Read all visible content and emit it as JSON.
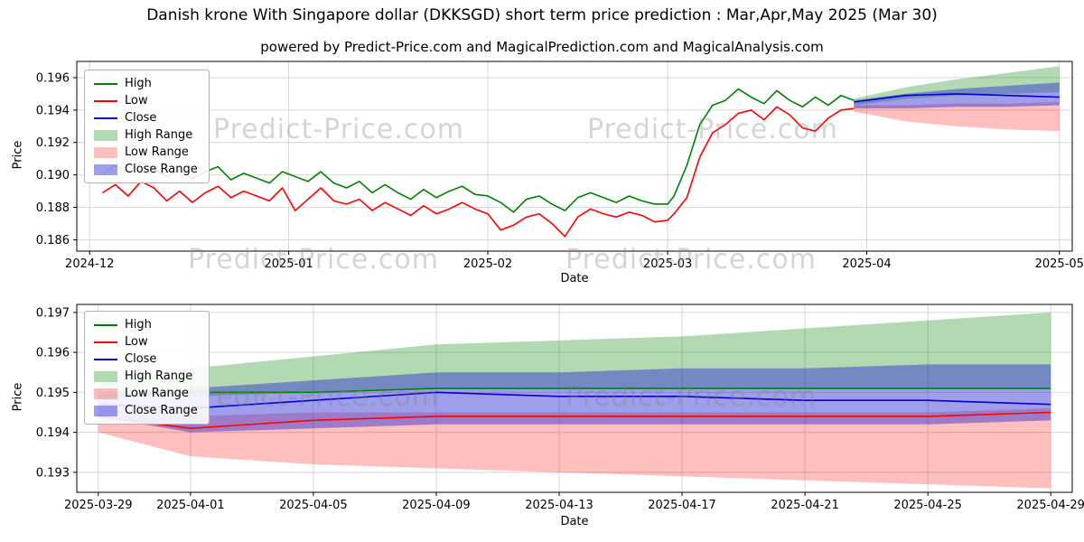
{
  "page": {
    "suptitle": "Danish krone With Singapore dollar (DKKSGD) short term price prediction : Mar,Apr,May 2025 (Mar 30)",
    "watermark": "Predict-Price.com"
  },
  "legend": [
    "High",
    "Low",
    "Close",
    "High Range",
    "Low Range",
    "Close Range"
  ],
  "colors": {
    "high": "#008000",
    "low": "#ff0000",
    "close": "#0000cd",
    "high_range": "rgba(0,128,0,0.30)",
    "low_range": "rgba(255,0,0,0.25)",
    "close_range": "rgba(40,40,210,0.45)"
  },
  "chart_data": [
    {
      "type": "line",
      "title": "powered by Predict-Price.com and MagicalPrediction.com and MagicalAnalysis.com",
      "xlabel": "Date",
      "ylabel": "Price",
      "x_unit": "days since 2024-12-01",
      "xlim": [
        -2,
        153
      ],
      "ylim": [
        0.1853,
        0.197
      ],
      "grid": true,
      "legend_position": "upper-left",
      "x_ticks": [
        {
          "v": 0,
          "label": "2024-12"
        },
        {
          "v": 31,
          "label": "2025-01"
        },
        {
          "v": 62,
          "label": "2025-02"
        },
        {
          "v": 90,
          "label": "2025-03"
        },
        {
          "v": 121,
          "label": "2025-04"
        },
        {
          "v": 151,
          "label": "2025-05"
        }
      ],
      "y_ticks": [
        {
          "v": 0.186,
          "label": "0.186"
        },
        {
          "v": 0.188,
          "label": "0.188"
        },
        {
          "v": 0.19,
          "label": "0.190"
        },
        {
          "v": 0.192,
          "label": "0.192"
        },
        {
          "v": 0.194,
          "label": "0.194"
        },
        {
          "v": 0.196,
          "label": "0.196"
        }
      ],
      "bands": [
        {
          "name": "High Range",
          "color": "#008000",
          "opacity": 0.3,
          "x": [
            119,
            127,
            135,
            143,
            151
          ],
          "upper": [
            0.1947,
            0.1954,
            0.1959,
            0.1963,
            0.1967
          ],
          "lower": [
            0.1943,
            0.1947,
            0.1949,
            0.195,
            0.1951
          ]
        },
        {
          "name": "Low Range",
          "color": "#ff0000",
          "opacity": 0.25,
          "x": [
            119,
            127,
            135,
            143,
            151
          ],
          "upper": [
            0.1943,
            0.1943,
            0.1944,
            0.1944,
            0.1945
          ],
          "lower": [
            0.1939,
            0.1933,
            0.193,
            0.1928,
            0.1927
          ]
        },
        {
          "name": "Close Range",
          "color": "#2828d2",
          "opacity": 0.45,
          "x": [
            119,
            127,
            135,
            143,
            151
          ],
          "upper": [
            0.1946,
            0.195,
            0.1953,
            0.1955,
            0.1957
          ],
          "lower": [
            0.1941,
            0.1941,
            0.1942,
            0.1942,
            0.1943
          ]
        }
      ],
      "series": [
        {
          "name": "High",
          "color": "#008000",
          "x": [
            2,
            4,
            6,
            8,
            10,
            12,
            14,
            16,
            18,
            20,
            22,
            24,
            26,
            28,
            30,
            32,
            34,
            36,
            38,
            40,
            42,
            44,
            46,
            48,
            50,
            52,
            54,
            56,
            58,
            60,
            62,
            64,
            66,
            68,
            70,
            72,
            74,
            76,
            78,
            80,
            82,
            84,
            86,
            88,
            90,
            91,
            93,
            95,
            97,
            99,
            101,
            103,
            105,
            107,
            109,
            111,
            113,
            115,
            117,
            119
          ],
          "y": [
            0.19,
            0.1906,
            0.1901,
            0.1908,
            0.1904,
            0.1899,
            0.1903,
            0.1898,
            0.1902,
            0.1905,
            0.1897,
            0.1901,
            0.1898,
            0.1895,
            0.1902,
            0.1899,
            0.1896,
            0.1902,
            0.1895,
            0.1892,
            0.1896,
            0.1889,
            0.1894,
            0.1889,
            0.1885,
            0.1891,
            0.1886,
            0.189,
            0.1893,
            0.1888,
            0.1887,
            0.1883,
            0.1877,
            0.1885,
            0.1887,
            0.1882,
            0.1878,
            0.1886,
            0.1889,
            0.1886,
            0.1883,
            0.1887,
            0.1884,
            0.1882,
            0.1882,
            0.1887,
            0.1906,
            0.1931,
            0.1943,
            0.1946,
            0.1953,
            0.1948,
            0.1944,
            0.1952,
            0.1946,
            0.1942,
            0.1948,
            0.1943,
            0.1949,
            0.1946
          ]
        },
        {
          "name": "Low",
          "color": "#ff0000",
          "x": [
            2,
            4,
            6,
            8,
            10,
            12,
            14,
            16,
            18,
            20,
            22,
            24,
            26,
            28,
            30,
            32,
            34,
            36,
            38,
            40,
            42,
            44,
            46,
            48,
            50,
            52,
            54,
            56,
            58,
            60,
            62,
            64,
            66,
            68,
            70,
            72,
            74,
            76,
            78,
            80,
            82,
            84,
            86,
            88,
            90,
            91,
            93,
            95,
            97,
            99,
            101,
            103,
            105,
            107,
            109,
            111,
            113,
            115,
            117,
            119
          ],
          "y": [
            0.1889,
            0.1894,
            0.1887,
            0.1896,
            0.1892,
            0.1884,
            0.189,
            0.1883,
            0.1889,
            0.1893,
            0.1886,
            0.189,
            0.1887,
            0.1884,
            0.1892,
            0.1878,
            0.1885,
            0.1892,
            0.1884,
            0.1882,
            0.1885,
            0.1878,
            0.1883,
            0.1879,
            0.1875,
            0.1881,
            0.1876,
            0.1879,
            0.1883,
            0.1879,
            0.1876,
            0.1866,
            0.1869,
            0.1874,
            0.1876,
            0.187,
            0.1862,
            0.1874,
            0.1879,
            0.1876,
            0.1874,
            0.1877,
            0.1875,
            0.1871,
            0.1872,
            0.1876,
            0.1886,
            0.1911,
            0.1926,
            0.1931,
            0.1938,
            0.194,
            0.1934,
            0.1942,
            0.1937,
            0.1929,
            0.1927,
            0.1935,
            0.194,
            0.1941
          ]
        },
        {
          "name": "Close",
          "color": "#0000cd",
          "x": [
            119,
            127,
            135,
            143,
            151
          ],
          "y": [
            0.1945,
            0.1949,
            0.195,
            0.1949,
            0.1948
          ]
        }
      ]
    },
    {
      "type": "line",
      "title": "",
      "xlabel": "Date",
      "ylabel": "Price",
      "x_unit": "days since 2025-03-29",
      "xlim": [
        -0.7,
        31.7
      ],
      "ylim": [
        0.1925,
        0.1972
      ],
      "grid": true,
      "legend_position": "upper-left",
      "x_ticks": [
        {
          "v": 0,
          "label": "2025-03-29"
        },
        {
          "v": 3,
          "label": "2025-04-01"
        },
        {
          "v": 7,
          "label": "2025-04-05"
        },
        {
          "v": 11,
          "label": "2025-04-09"
        },
        {
          "v": 15,
          "label": "2025-04-13"
        },
        {
          "v": 19,
          "label": "2025-04-17"
        },
        {
          "v": 23,
          "label": "2025-04-21"
        },
        {
          "v": 27,
          "label": "2025-04-25"
        },
        {
          "v": 31,
          "label": "2025-04-29"
        }
      ],
      "y_ticks": [
        {
          "v": 0.193,
          "label": "0.193"
        },
        {
          "v": 0.194,
          "label": "0.194"
        },
        {
          "v": 0.195,
          "label": "0.195"
        },
        {
          "v": 0.196,
          "label": "0.196"
        },
        {
          "v": 0.197,
          "label": "0.197"
        }
      ],
      "bands": [
        {
          "name": "High Range",
          "color": "#008000",
          "opacity": 0.3,
          "x": [
            0,
            3,
            7,
            11,
            15,
            19,
            23,
            27,
            31
          ],
          "upper": [
            0.1952,
            0.1956,
            0.1959,
            0.1962,
            0.1963,
            0.1964,
            0.1966,
            0.1968,
            0.197
          ],
          "lower": [
            0.1948,
            0.1949,
            0.195,
            0.1951,
            0.1951,
            0.1951,
            0.1951,
            0.1951,
            0.1951
          ]
        },
        {
          "name": "Low Range",
          "color": "#ff0000",
          "opacity": 0.25,
          "x": [
            0,
            3,
            7,
            11,
            15,
            19,
            23,
            27,
            31
          ],
          "upper": [
            0.1946,
            0.1944,
            0.1945,
            0.1945,
            0.1945,
            0.1945,
            0.1945,
            0.1945,
            0.1946
          ],
          "lower": [
            0.194,
            0.1934,
            0.1932,
            0.1931,
            0.193,
            0.1929,
            0.1928,
            0.1927,
            0.1926
          ]
        },
        {
          "name": "Close Range",
          "color": "#2828d2",
          "opacity": 0.45,
          "x": [
            0,
            3,
            7,
            11,
            15,
            19,
            23,
            27,
            31
          ],
          "upper": [
            0.195,
            0.1951,
            0.1953,
            0.1955,
            0.1955,
            0.1956,
            0.1956,
            0.1957,
            0.1957
          ],
          "lower": [
            0.1944,
            0.194,
            0.1941,
            0.1942,
            0.1942,
            0.1942,
            0.1942,
            0.1942,
            0.1943
          ]
        }
      ],
      "series": [
        {
          "name": "High",
          "color": "#008000",
          "x": [
            0,
            3,
            7,
            11,
            15,
            19,
            23,
            27,
            31
          ],
          "y": [
            0.1949,
            0.195,
            0.195,
            0.1951,
            0.1951,
            0.1951,
            0.1951,
            0.1951,
            0.1951
          ]
        },
        {
          "name": "Low",
          "color": "#ff0000",
          "x": [
            0,
            3,
            7,
            11,
            15,
            19,
            23,
            27,
            31
          ],
          "y": [
            0.1944,
            0.1941,
            0.1943,
            0.1944,
            0.1944,
            0.1944,
            0.1944,
            0.1944,
            0.1945
          ]
        },
        {
          "name": "Close",
          "color": "#0000cd",
          "x": [
            0,
            3,
            7,
            11,
            15,
            19,
            23,
            27,
            31
          ],
          "y": [
            0.1947,
            0.1946,
            0.1948,
            0.195,
            0.1949,
            0.1949,
            0.1948,
            0.1948,
            0.1947
          ]
        }
      ]
    }
  ]
}
